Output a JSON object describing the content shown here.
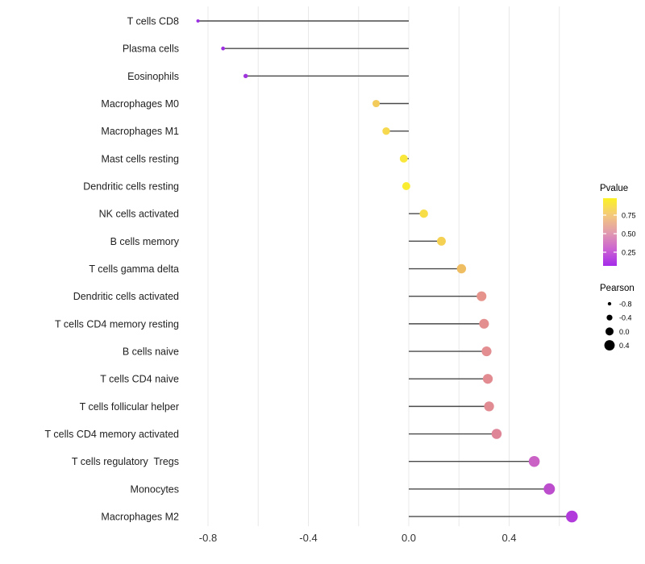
{
  "chart_data": {
    "type": "scatter",
    "variant": "lollipop",
    "title": "",
    "xlabel": "",
    "ylabel": "",
    "xlim": [
      -0.88,
      0.7
    ],
    "grid": true,
    "legend_position": "right",
    "baseline": 0,
    "x_gridlines": [
      -0.8,
      -0.6,
      -0.4,
      -0.2,
      0.0,
      0.2,
      0.4,
      0.6
    ],
    "x_ticks": {
      "values": [
        -0.8,
        -0.4,
        0.0,
        0.4
      ],
      "labels": [
        "-0.8",
        "-0.4",
        "0.0",
        "0.4"
      ]
    },
    "points": [
      {
        "category": "T cells CD8",
        "pearson": -0.84,
        "pvalue": 0.02,
        "color": "#9B2FE3"
      },
      {
        "category": "Plasma cells",
        "pearson": -0.74,
        "pvalue": 0.04,
        "color": "#9D31E1"
      },
      {
        "category": "Eosinophils",
        "pearson": -0.65,
        "pvalue": 0.06,
        "color": "#A035DE"
      },
      {
        "category": "Macrophages M0",
        "pearson": -0.13,
        "pvalue": 0.72,
        "color": "#F3CB5B"
      },
      {
        "category": "Macrophages M1",
        "pearson": -0.09,
        "pvalue": 0.78,
        "color": "#F6D94E"
      },
      {
        "category": "Mast cells resting",
        "pearson": -0.02,
        "pvalue": 0.87,
        "color": "#F9E83B"
      },
      {
        "category": "Dendritic cells resting",
        "pearson": -0.01,
        "pvalue": 0.9,
        "color": "#FAED31"
      },
      {
        "category": "NK cells activated",
        "pearson": 0.06,
        "pvalue": 0.8,
        "color": "#F7DE48"
      },
      {
        "category": "B cells memory",
        "pearson": 0.13,
        "pvalue": 0.74,
        "color": "#F4D153"
      },
      {
        "category": "T cells gamma delta",
        "pearson": 0.21,
        "pvalue": 0.64,
        "color": "#EFBE63"
      },
      {
        "category": "Dendritic cells activated",
        "pearson": 0.29,
        "pvalue": 0.5,
        "color": "#E6948B"
      },
      {
        "category": "T cells CD4 memory resting",
        "pearson": 0.3,
        "pvalue": 0.49,
        "color": "#E38F8F"
      },
      {
        "category": "B cells naive",
        "pearson": 0.31,
        "pvalue": 0.48,
        "color": "#E38E90"
      },
      {
        "category": "T cells CD4 naive",
        "pearson": 0.315,
        "pvalue": 0.47,
        "color": "#E28C91"
      },
      {
        "category": "T cells follicular helper",
        "pearson": 0.32,
        "pvalue": 0.46,
        "color": "#E18B93"
      },
      {
        "category": "T cells CD4 memory activated",
        "pearson": 0.35,
        "pvalue": 0.43,
        "color": "#DE8598"
      },
      {
        "category": "T cells regulatory  Tregs",
        "pearson": 0.5,
        "pvalue": 0.21,
        "color": "#CA62C6"
      },
      {
        "category": "Monocytes",
        "pearson": 0.56,
        "pvalue": 0.14,
        "color": "#BC4ECD"
      },
      {
        "category": "Macrophages M2",
        "pearson": 0.65,
        "pvalue": 0.09,
        "color": "#B23BDB"
      }
    ],
    "legends": {
      "pvalue": {
        "title": "Pvalue",
        "ticks": [
          {
            "value": 0.75,
            "label": "0.75"
          },
          {
            "value": 0.5,
            "label": "0.50"
          },
          {
            "value": 0.25,
            "label": "0.25"
          }
        ],
        "gradient": [
          {
            "offset": 0.0,
            "color": "#FBF224"
          },
          {
            "offset": 0.25,
            "color": "#F4C97B"
          },
          {
            "offset": 0.5,
            "color": "#E29DAC"
          },
          {
            "offset": 0.75,
            "color": "#CC64D2"
          },
          {
            "offset": 1.0,
            "color": "#A52BE9"
          }
        ]
      },
      "pearson": {
        "title": "Pearson",
        "dot_color": "#000000",
        "items": [
          {
            "value": -0.8,
            "label": "-0.8"
          },
          {
            "value": -0.4,
            "label": "-0.4"
          },
          {
            "value": 0.0,
            "label": "0.0"
          },
          {
            "value": 0.4,
            "label": "0.4"
          }
        ]
      }
    },
    "colors": {
      "stem": "#4A4A4A",
      "grid": "#E8E8E8",
      "axis_text": "#262626",
      "background": "#FFFFFF"
    }
  }
}
